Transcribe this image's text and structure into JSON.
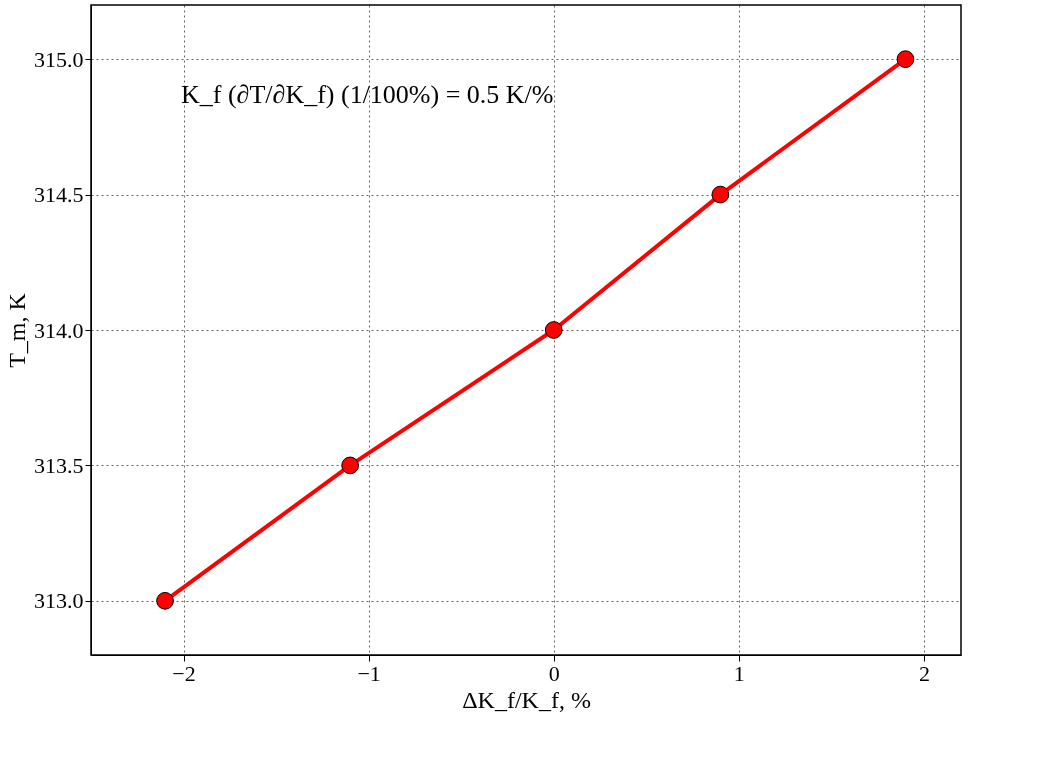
{
  "chart_data": {
    "type": "line",
    "xlabel": "ΔK_f/K_f, %",
    "ylabel": "T_m, K",
    "annotations": [
      "K_f (∂T/∂K_f) (1/100%) = 0.5 K/%"
    ],
    "x": [
      -2.1,
      -1.1,
      0,
      0.9,
      1.9
    ],
    "series": [
      {
        "color": "#ff0000",
        "values": [
          313.0,
          313.5,
          314.0,
          314.5,
          315.0
        ]
      }
    ],
    "xlim": [
      -2.5,
      2.2
    ],
    "ylim": [
      312.8,
      315.2
    ],
    "xticks": [
      {
        "value": -2,
        "label": "−2"
      },
      {
        "value": -1,
        "label": "−1"
      },
      0,
      1,
      2
    ],
    "yticks": [
      {
        "value": 313,
        "label": "313.0"
      },
      {
        "value": 313.5,
        "label": "313.5"
      },
      {
        "value": 314,
        "label": "314.0"
      },
      {
        "value": 314.5,
        "label": "314.5"
      },
      {
        "value": 315,
        "label": "315.0"
      }
    ],
    "grid": true,
    "marker": "circle",
    "line_style": "solid",
    "legend": false
  }
}
